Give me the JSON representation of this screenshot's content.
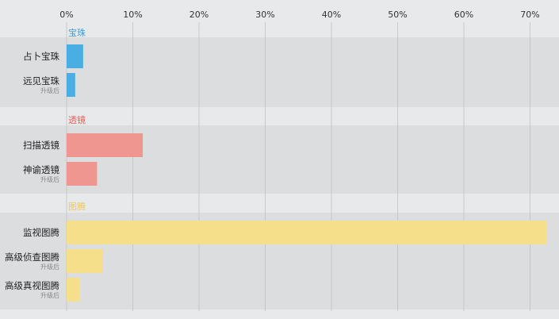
{
  "chart_data": {
    "type": "bar",
    "orientation": "horizontal",
    "x_ticks": [
      "0%",
      "10%",
      "20%",
      "30%",
      "40%",
      "50%",
      "60%",
      "70%"
    ],
    "xlim": [
      0,
      74
    ],
    "grid": true,
    "groups": [
      {
        "name": "宝珠",
        "color": "#4aaee3",
        "bars": [
          {
            "label": "占卜宝珠",
            "note": "",
            "value": 2.5
          },
          {
            "label": "远见宝珠",
            "note": "升级后",
            "value": 1.3
          }
        ]
      },
      {
        "name": "透镜",
        "color": "#ef9690",
        "bars": [
          {
            "label": "扫描透镜",
            "note": "",
            "value": 11.5
          },
          {
            "label": "神谕透镜",
            "note": "升级后",
            "value": 4.6
          }
        ]
      },
      {
        "name": "图腾",
        "color": "#f5df8a",
        "bars": [
          {
            "label": "监视图腾",
            "note": "",
            "value": 72.5
          },
          {
            "label": "高级侦查图腾",
            "note": "升级后",
            "value": 5.5
          },
          {
            "label": "高级真视图腾",
            "note": "升级后",
            "value": 2.0
          }
        ]
      }
    ]
  },
  "colors": {
    "background": "#e8e9ea",
    "band": "#dcdddf",
    "grid": "#bcbdbe",
    "group_label_colors": [
      "#3a9fd8",
      "#e4625c",
      "#e8c86a"
    ]
  }
}
